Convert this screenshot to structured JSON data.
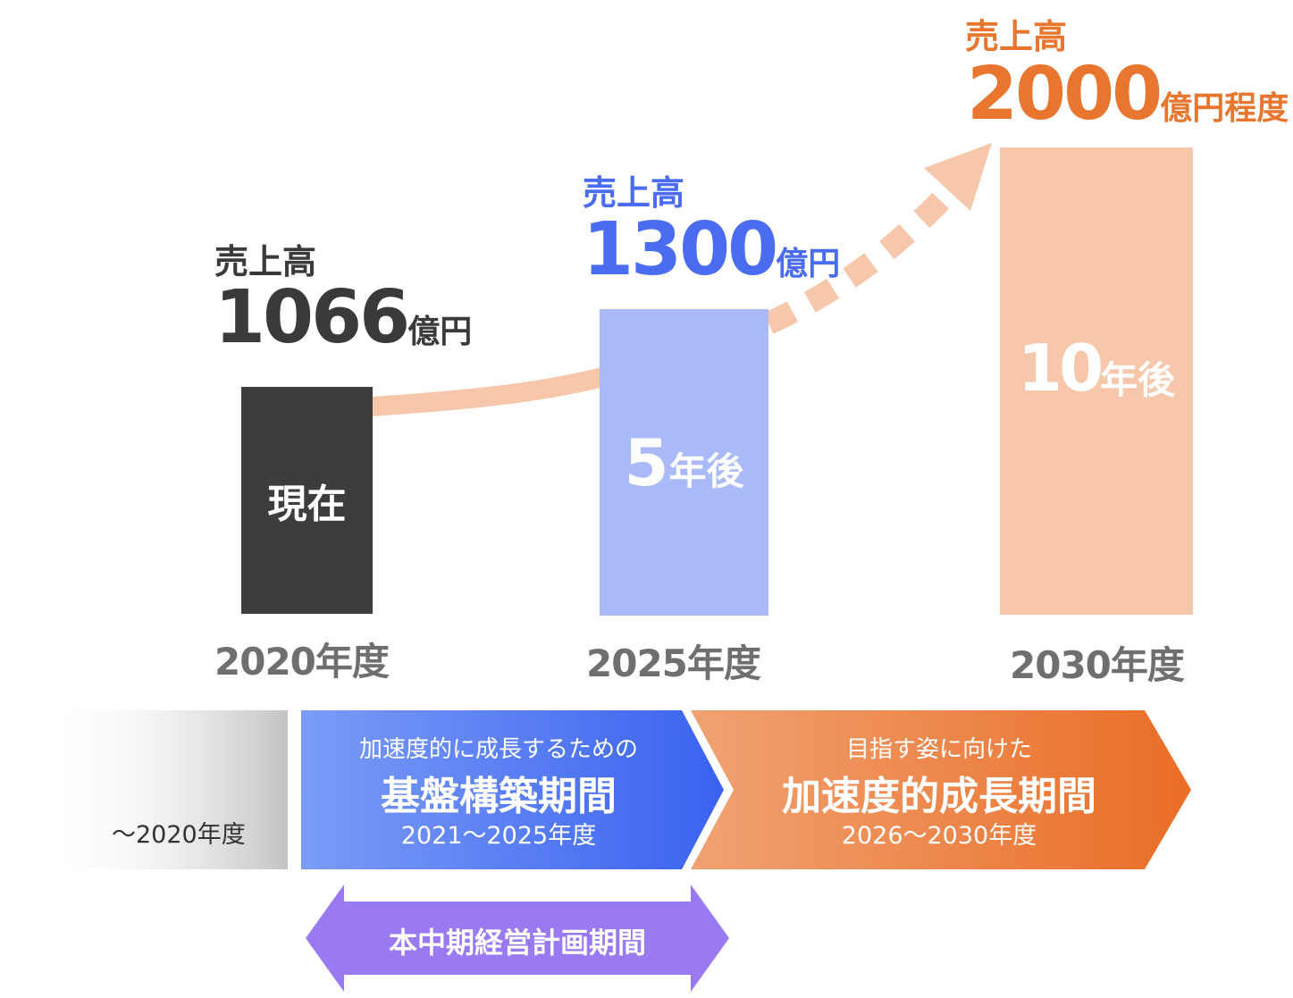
{
  "chart_data": {
    "type": "bar",
    "categories": [
      "2020年度",
      "2025年度",
      "2030年度"
    ],
    "series": [
      {
        "values": [
          1066,
          1300,
          2000
        ]
      }
    ],
    "value_prefix": "売上高",
    "value_labels": [
      {
        "number": "1066",
        "unit": "億円",
        "color": "#3a3a3a"
      },
      {
        "number": "1300",
        "unit": "億円",
        "color": "#4a6cf0"
      },
      {
        "number": "2000",
        "unit": "億円程度",
        "color": "#e8762e"
      }
    ],
    "bar_labels": [
      {
        "prefix": "",
        "text": "現在"
      },
      {
        "prefix": "5",
        "text": "年後"
      },
      {
        "prefix": "10",
        "text": "年後"
      }
    ],
    "bar_colors": [
      "#3d3d3d",
      "#aab9f8",
      "#f6c7ab"
    ],
    "arrow_color": "#f6c7ab",
    "legend": "none",
    "grid": false
  },
  "timeline": {
    "past": {
      "label": "〜2020年度"
    },
    "phase1": {
      "subtitle": "加速度的に成長するための",
      "title": "基盤構築期間",
      "range": "2021〜2025年度",
      "color_start": "#7b9cf7",
      "color_end": "#3a62f0"
    },
    "phase2": {
      "subtitle": "目指す姿に向けた",
      "title": "加速度的成長期間",
      "range": "2026〜2030年度",
      "color_start": "#f0a272",
      "color_end": "#ea6d26"
    },
    "plan": {
      "label": "本中期経営計画期間",
      "color": "#9a7af2"
    }
  }
}
